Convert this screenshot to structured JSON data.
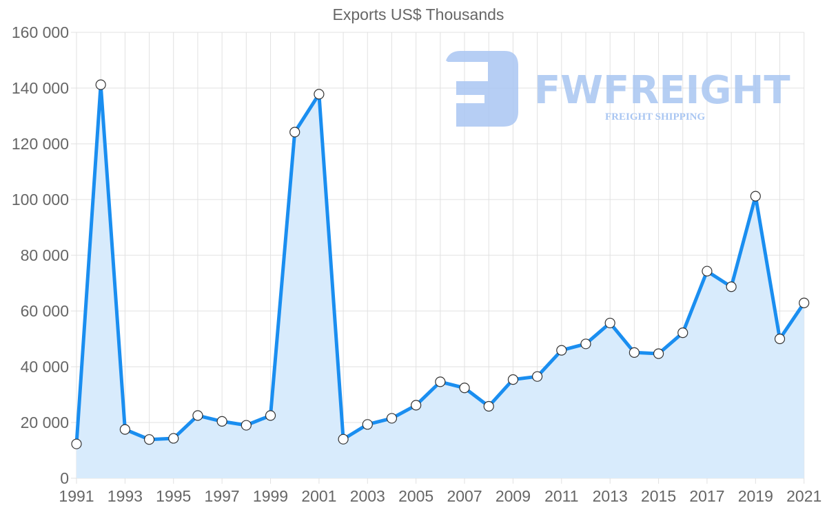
{
  "chart_data": {
    "type": "line",
    "title": "Exports US$ Thousands",
    "xlabel": "",
    "ylabel": "",
    "categories": [
      "1991",
      "1992",
      "1993",
      "1994",
      "1995",
      "1996",
      "1997",
      "1998",
      "1999",
      "2000",
      "2001",
      "2002",
      "2003",
      "2004",
      "2005",
      "2006",
      "2007",
      "2008",
      "2009",
      "2010",
      "2011",
      "2012",
      "2013",
      "2014",
      "2015",
      "2016",
      "2017",
      "2018",
      "2019",
      "2020",
      "2021"
    ],
    "series": [
      {
        "name": "Exports US$ Thousands",
        "values": [
          12300,
          141200,
          17500,
          13900,
          14300,
          22500,
          20400,
          19000,
          22500,
          124200,
          137800,
          14000,
          19300,
          21500,
          26200,
          34600,
          32400,
          25800,
          35400,
          36500,
          45900,
          48200,
          55700,
          45100,
          44700,
          52200,
          74300,
          68700,
          101200,
          50000,
          62900
        ]
      }
    ],
    "ylim": [
      0,
      160000
    ],
    "yticks": [
      "0",
      "20 000",
      "40 000",
      "60 000",
      "80 000",
      "100 000",
      "120 000",
      "140 000",
      "160 000"
    ],
    "xticks": [
      "1991",
      "1993",
      "1995",
      "1997",
      "1999",
      "2001",
      "2003",
      "2005",
      "2007",
      "2009",
      "2011",
      "2013",
      "2015",
      "2017",
      "2019",
      "2021"
    ],
    "grid": true,
    "filled": true,
    "legend": "none"
  },
  "style": {
    "line_color": "#1a8ef0",
    "fill_color": "#d8ebfc",
    "point_fill": "#ffffff",
    "point_stroke": "#333333",
    "watermark_color": "#a9c6f2"
  },
  "watermark": {
    "brand": "FWFREIGHT",
    "tagline": "FREIGHT SHIPPING"
  }
}
